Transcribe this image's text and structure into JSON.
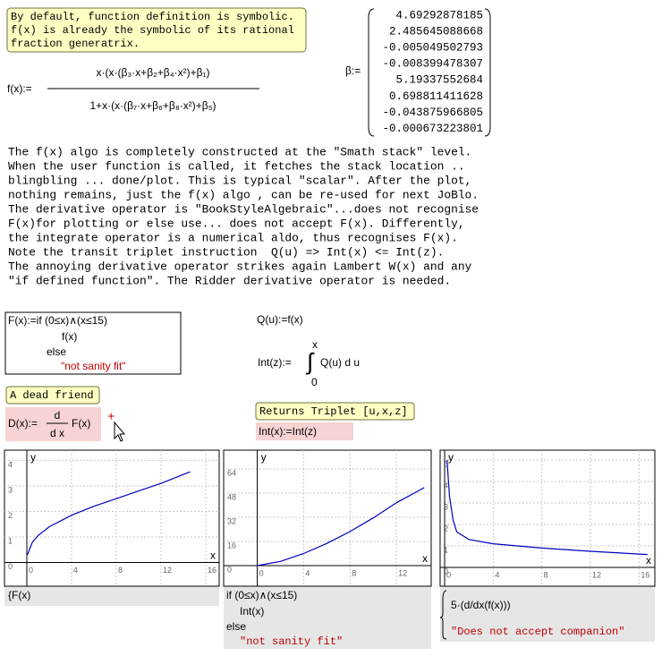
{
  "note": {
    "lines": [
      "By default, function definition is symbolic.",
      "f(x) is already the symbolic of its rational",
      "fraction generatrix."
    ]
  },
  "f_definition": {
    "lhs": "f(x):=",
    "numerator": "x·(x·(β₃·x+β₂+β₄·x²)+β₁)",
    "denominator": "1+x·(x·(β₇·x+β₆+β₈·x²)+β₅)"
  },
  "beta": {
    "label": "β:=",
    "values": [
      4.69292878185,
      2.485645088668,
      -0.005049502793,
      -0.008399478307,
      5.19337552684,
      0.698811411628,
      -0.043875966805,
      -0.000673223801
    ]
  },
  "description": {
    "lines": [
      "The f(x) algo is completely constructed at the \"Smath stack\" level.",
      "When the user function is called, it fetches the stack location ..",
      "blingbling ... done/plot. This is typical \"scalar\". After the plot,",
      "nothing remains, just the f(x) algo , can be re-used for next JoBlo.",
      "The derivative operator is \"BookStyleAlgebraic\"...does not recognise",
      "F(x)for plotting or else use... does not accept F(x). Differently,",
      "the integrate operator is a numerical aldo, thus recognises F(x).",
      "Note the transit triplet instruction  Q(u) => Int(x) <= Int(z).",
      "The annoying derivative operator strikes again Lambert W(x) and any",
      "\"if defined function\". The Ridder derivative operator is needed."
    ]
  },
  "F_definition": {
    "lines": [
      "F(x):=if (0≤x)∧(x≤15)",
      "f(x)",
      "else",
      "\"not sanity fit\""
    ]
  },
  "Q_definition": "Q(u):=f(x)",
  "Int_definition": {
    "lhs": "Int(z):=",
    "upper": "x",
    "integral": "∫",
    "integrand": "Q(u) d u",
    "lower": "0"
  },
  "dead_friend": {
    "note": "A dead friend",
    "lhs": "D(x):=",
    "numerator": "d",
    "denominator": "d x",
    "rhs": "F(x)",
    "marker": "+"
  },
  "triplet": {
    "note": "Returns Triplet [u,x,z]",
    "expression": "Int(x):=Int(z)"
  },
  "plots": [
    {
      "x_label": "x",
      "y_label": "y",
      "xlim": [
        -2,
        17.2
      ],
      "ylim": [
        -0.93,
        4.4
      ],
      "xticks": [
        0,
        4,
        8,
        12,
        16
      ],
      "yticks": [
        0,
        1,
        2,
        3,
        4
      ],
      "curve": {
        "color": "#0000c0",
        "x": [
          0.05,
          0.5,
          1,
          2,
          4,
          6,
          8,
          10,
          12,
          14.6
        ],
        "y": [
          0.3,
          0.8,
          1.05,
          1.4,
          1.85,
          2.2,
          2.5,
          2.8,
          3.1,
          3.55
        ]
      },
      "expression": {
        "lines": [
          "{F(x)"
        ]
      }
    },
    {
      "x_label": "x",
      "y_label": "y",
      "xlim": [
        -2.9,
        15
      ],
      "ylim": [
        -13.6,
        76.4
      ],
      "xticks": [
        0,
        4,
        8,
        12
      ],
      "yticks": [
        0,
        16,
        32,
        48,
        64
      ],
      "curve": {
        "color": "#0000c0",
        "x": [
          0,
          2,
          4,
          6,
          8,
          10,
          12,
          14.4
        ],
        "y": [
          0,
          2.8,
          8,
          14.7,
          22.6,
          31.6,
          41.6,
          51.6
        ]
      },
      "expression": {
        "lines": [
          "if (0≤x)∧(x≤15)",
          "Int(x)",
          "else",
          "\"not sanity fit\""
        ]
      }
    },
    {
      "x_label": "x",
      "y_label": "y",
      "xlim": [
        -0.37,
        17.3
      ],
      "ylim": [
        -0.875,
        5.46
      ],
      "xticks": [
        0,
        4,
        8,
        12,
        16
      ],
      "yticks": [
        0,
        1,
        2,
        3,
        4,
        5
      ],
      "curve": {
        "color": "#0000c0",
        "x": [
          0.2,
          0.4,
          0.7,
          1,
          2,
          4,
          8,
          12,
          16.7
        ],
        "y": [
          5,
          3.3,
          2.2,
          1.65,
          1.3,
          1.1,
          0.9,
          0.75,
          0.6
        ]
      },
      "expression": {
        "lines": [
          "5·(d/dx(f(x)))",
          "\"Does not accept companion\""
        ]
      }
    }
  ]
}
